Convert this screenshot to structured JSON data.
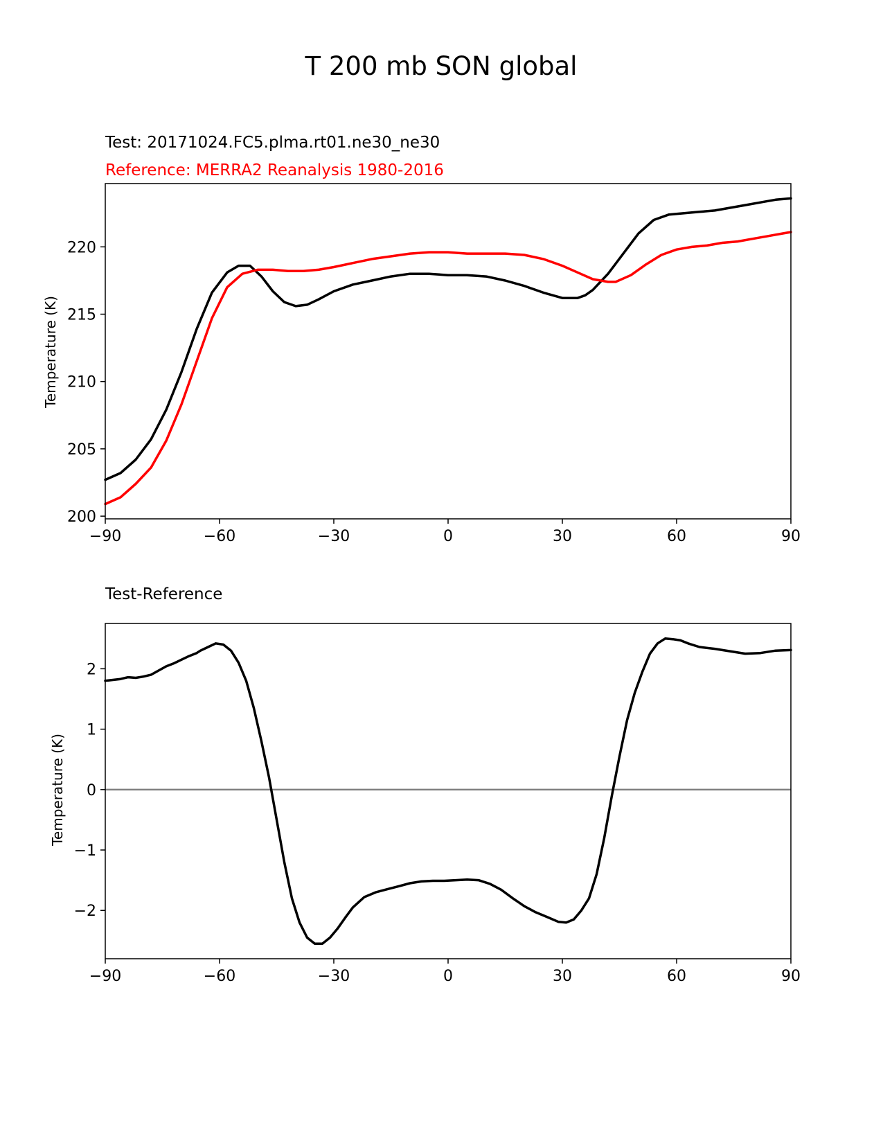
{
  "figure": {
    "title": "T 200 mb SON global"
  },
  "chart_data": [
    {
      "type": "line",
      "subtitle_test": "Test: 20171024.FC5.plma.rt01.ne30_ne30",
      "subtitle_reference": "Reference: MERRA2 Reanalysis 1980-2016",
      "xlabel": "",
      "ylabel": "Temperature (K)",
      "xlim": [
        -90,
        90
      ],
      "ylim": [
        199.8,
        224.7
      ],
      "xticks": [
        -90,
        -60,
        -30,
        0,
        30,
        60,
        90
      ],
      "xtick_labels": [
        "−90",
        "−60",
        "−30",
        "0",
        "30",
        "60",
        "90"
      ],
      "yticks": [
        200,
        205,
        210,
        215,
        220
      ],
      "ytick_labels": [
        "200",
        "205",
        "210",
        "215",
        "220"
      ],
      "grid": false,
      "series": [
        {
          "name": "Test",
          "color": "#000000",
          "x": [
            -90,
            -86,
            -82,
            -78,
            -74,
            -70,
            -66,
            -62,
            -58,
            -55,
            -52,
            -49,
            -46,
            -43,
            -40,
            -37,
            -34,
            -30,
            -25,
            -20,
            -15,
            -10,
            -5,
            0,
            5,
            10,
            15,
            20,
            25,
            30,
            34,
            36,
            38,
            42,
            46,
            50,
            54,
            58,
            62,
            66,
            70,
            74,
            78,
            82,
            86,
            90
          ],
          "y": [
            202.7,
            203.2,
            204.2,
            205.7,
            207.9,
            210.7,
            213.9,
            216.6,
            218.1,
            218.6,
            218.6,
            217.8,
            216.7,
            215.9,
            215.6,
            215.7,
            216.1,
            216.7,
            217.2,
            217.5,
            217.8,
            218.0,
            218.0,
            217.9,
            217.9,
            217.8,
            217.5,
            217.1,
            216.6,
            216.2,
            216.2,
            216.4,
            216.8,
            218.0,
            219.5,
            221.0,
            222.0,
            222.4,
            222.5,
            222.6,
            222.7,
            222.9,
            223.1,
            223.3,
            223.5,
            223.6
          ]
        },
        {
          "name": "Reference",
          "color": "#ff0000",
          "x": [
            -90,
            -86,
            -82,
            -78,
            -74,
            -70,
            -66,
            -62,
            -58,
            -54,
            -50,
            -46,
            -42,
            -38,
            -34,
            -30,
            -25,
            -20,
            -15,
            -10,
            -5,
            0,
            5,
            10,
            15,
            20,
            25,
            30,
            34,
            38,
            42,
            44,
            48,
            52,
            56,
            60,
            64,
            68,
            72,
            76,
            80,
            84,
            88,
            90
          ],
          "y": [
            200.9,
            201.4,
            202.4,
            203.6,
            205.6,
            208.3,
            211.5,
            214.7,
            217.0,
            218.0,
            218.3,
            218.3,
            218.2,
            218.2,
            218.3,
            218.5,
            218.8,
            219.1,
            219.3,
            219.5,
            219.6,
            219.6,
            219.5,
            219.5,
            219.5,
            219.4,
            219.1,
            218.6,
            218.1,
            217.6,
            217.4,
            217.4,
            217.9,
            218.7,
            219.4,
            219.8,
            220.0,
            220.1,
            220.3,
            220.4,
            220.6,
            220.8,
            221.0,
            221.1
          ]
        }
      ]
    },
    {
      "type": "line",
      "subtitle": "Test-Reference",
      "xlabel": "",
      "ylabel": "Temperature (K)",
      "xlim": [
        -90,
        90
      ],
      "ylim": [
        -2.8,
        2.75
      ],
      "xticks": [
        -90,
        -60,
        -30,
        0,
        30,
        60,
        90
      ],
      "xtick_labels": [
        "−90",
        "−60",
        "−30",
        "0",
        "30",
        "60",
        "90"
      ],
      "yticks": [
        -2,
        -1,
        0,
        1,
        2
      ],
      "ytick_labels": [
        "−2",
        "−1",
        "0",
        "1",
        "2"
      ],
      "grid": false,
      "zero_line": {
        "y": 0,
        "color": "#808080"
      },
      "series": [
        {
          "name": "Test-Reference",
          "color": "#000000",
          "x": [
            -90,
            -86,
            -84,
            -82,
            -80,
            -78,
            -76,
            -74,
            -72,
            -70,
            -68,
            -66,
            -65,
            -63,
            -61,
            -59,
            -57,
            -55,
            -53,
            -51,
            -49,
            -47,
            -45,
            -43,
            -41,
            -39,
            -37,
            -35,
            -33,
            -31,
            -29,
            -27,
            -25,
            -22,
            -19,
            -16,
            -13,
            -10,
            -7,
            -4,
            -1,
            2,
            5,
            8,
            11,
            14,
            17,
            20,
            23,
            26,
            29,
            31,
            33,
            35,
            37,
            39,
            41,
            43,
            45,
            47,
            49,
            51,
            53,
            55,
            57,
            59,
            61,
            63,
            66,
            70,
            74,
            78,
            82,
            86,
            90
          ],
          "y": [
            1.8,
            1.83,
            1.86,
            1.85,
            1.87,
            1.9,
            1.97,
            2.04,
            2.09,
            2.15,
            2.21,
            2.26,
            2.3,
            2.36,
            2.42,
            2.4,
            2.3,
            2.1,
            1.8,
            1.35,
            0.8,
            0.2,
            -0.5,
            -1.2,
            -1.8,
            -2.2,
            -2.45,
            -2.55,
            -2.55,
            -2.45,
            -2.3,
            -2.12,
            -1.95,
            -1.78,
            -1.7,
            -1.65,
            -1.6,
            -1.55,
            -1.52,
            -1.51,
            -1.51,
            -1.5,
            -1.49,
            -1.5,
            -1.56,
            -1.66,
            -1.8,
            -1.93,
            -2.03,
            -2.11,
            -2.19,
            -2.2,
            -2.15,
            -2.0,
            -1.8,
            -1.4,
            -0.8,
            -0.1,
            0.55,
            1.15,
            1.6,
            1.95,
            2.25,
            2.42,
            2.5,
            2.49,
            2.47,
            2.42,
            2.36,
            2.33,
            2.29,
            2.25,
            2.26,
            2.3,
            2.31
          ]
        }
      ]
    }
  ]
}
